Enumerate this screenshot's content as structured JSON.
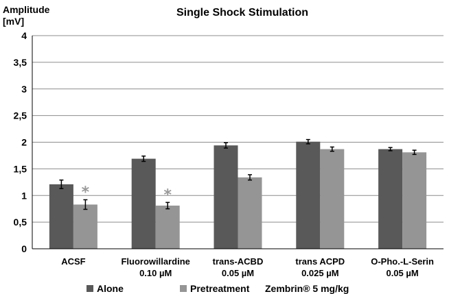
{
  "chart_data": {
    "type": "bar",
    "title": "Single Shock Stimulation",
    "ylabel": [
      "Amplitude",
      "[mV]"
    ],
    "xlabel": "",
    "ylim": [
      0,
      4
    ],
    "yticks": [
      "0",
      "0,5",
      "1",
      "1,5",
      "2",
      "2,5",
      "3",
      "3,5",
      "4"
    ],
    "categories": [
      [
        "ACSF"
      ],
      [
        "Fluorowillardine",
        "0.10 µM"
      ],
      [
        "trans-ACBD",
        "0.05 µM"
      ],
      [
        "trans ACPD",
        "0.025 µM"
      ],
      [
        "O-Pho.-L-Serin",
        "0.05 µM"
      ]
    ],
    "series": [
      {
        "name": "Alone",
        "color": "#595959",
        "values": [
          1.21,
          1.69,
          1.94,
          2.01,
          1.87
        ],
        "errors": [
          0.08,
          0.05,
          0.05,
          0.04,
          0.03
        ]
      },
      {
        "name": "Pretreatment",
        "color": "#959595",
        "values": [
          0.83,
          0.81,
          1.34,
          1.87,
          1.81
        ],
        "errors": [
          0.09,
          0.06,
          0.05,
          0.04,
          0.04
        ]
      }
    ],
    "annotations": [
      {
        "series": 1,
        "category": 0,
        "text": "*",
        "color": "#999999"
      },
      {
        "series": 1,
        "category": 1,
        "text": "*",
        "color": "#999999"
      }
    ],
    "legend_note": "Zembrin® 5 mg/kg",
    "legend_position": "bottom",
    "grid": true,
    "grid_color": "#8c8c8c"
  }
}
